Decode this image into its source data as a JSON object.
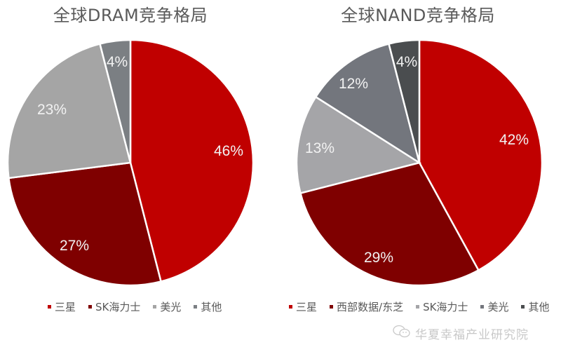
{
  "chart_data": [
    {
      "type": "pie",
      "title": "全球DRAM竞争格局",
      "categories": [
        "三星",
        "SK海力士",
        "美光",
        "其他"
      ],
      "values": [
        46,
        27,
        23,
        4
      ],
      "labels": [
        "46%",
        "27%",
        "23%",
        "4%"
      ],
      "colors": [
        "#c00000",
        "#7f0000",
        "#a5a5a5",
        "#7b7f83"
      ],
      "legend_position": "bottom",
      "start_angle": "12 o'clock, clockwise"
    },
    {
      "type": "pie",
      "title": "全球NAND竞争格局",
      "categories": [
        "三星",
        "西部数据/东芝",
        "SK海力士",
        "美光",
        "其他"
      ],
      "values": [
        42,
        29,
        13,
        12,
        4
      ],
      "labels": [
        "42%",
        "29%",
        "13%",
        "12%",
        "4%"
      ],
      "colors": [
        "#c00000",
        "#7f0000",
        "#a5a5a8",
        "#73767d",
        "#4a4d4f"
      ],
      "legend_position": "bottom",
      "start_angle": "12 o'clock, clockwise"
    }
  ],
  "dram": {
    "title": "全球DRAM竞争格局",
    "legend": [
      "三星",
      "SK海力士",
      "美光",
      "其他"
    ]
  },
  "nand": {
    "title": "全球NAND竞争格局",
    "legend": [
      "三星",
      "西部数据/东芝",
      "SK海力士",
      "美光",
      "其他"
    ]
  },
  "watermark": {
    "text": "华夏幸福产业研究院",
    "icon": "wechat-icon"
  },
  "colors": {
    "label_text": "#f2f2f2",
    "title_text": "#5a5a5a",
    "legend_text": "#595959"
  }
}
